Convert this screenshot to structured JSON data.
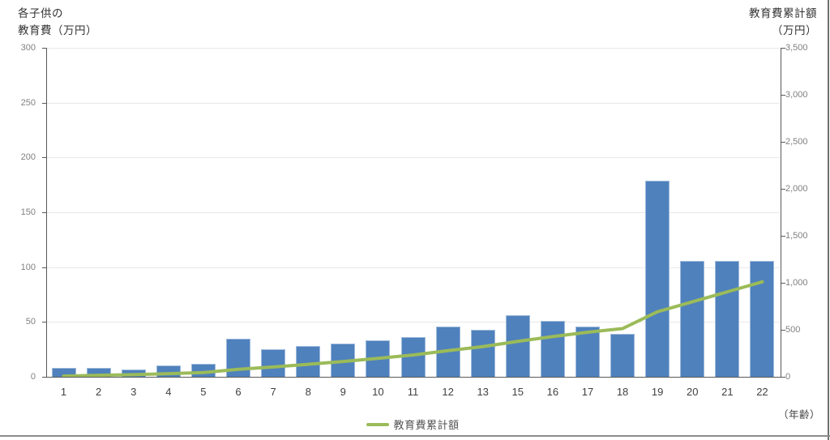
{
  "chart_data": {
    "type": "combo-bar-line",
    "categories": [
      "1",
      "2",
      "3",
      "4",
      "5",
      "6",
      "7",
      "8",
      "9",
      "10",
      "11",
      "12",
      "13",
      "15",
      "16",
      "17",
      "18",
      "19",
      "20",
      "21",
      "22"
    ],
    "series": [
      {
        "name": "各子供の教育費",
        "chart_type": "bar",
        "axis": "left",
        "color": "#4F81BD",
        "values": [
          8,
          8,
          7,
          10,
          12,
          35,
          25,
          28,
          30,
          33,
          36,
          46,
          43,
          56,
          51,
          46,
          39,
          179,
          106,
          106,
          106
        ]
      },
      {
        "name": "教育費累計額",
        "chart_type": "line",
        "axis": "right",
        "color": "#9BBB59",
        "values": [
          8,
          16,
          23,
          33,
          45,
          80,
          105,
          133,
          163,
          196,
          232,
          278,
          321,
          377,
          428,
          474,
          513,
          692,
          798,
          904,
          1010
        ]
      }
    ],
    "left_axis": {
      "title_lines": [
        "各子供の",
        "教育費（万円）"
      ],
      "min": 0,
      "max": 300,
      "step": 50,
      "tick_labels": [
        "0",
        "50",
        "100",
        "150",
        "200",
        "250",
        "300"
      ]
    },
    "right_axis": {
      "title_lines": [
        "教育費累計額",
        "（万円）"
      ],
      "min": 0,
      "max": 3500,
      "step": 500,
      "tick_labels": [
        "0",
        "500",
        "1,000",
        "1,500",
        "2,000",
        "2,500",
        "3,000",
        "3,500"
      ]
    },
    "x_axis": {
      "unit_label": "（年齢）"
    },
    "legend": [
      {
        "label": "教育費累計額",
        "color": "#9BBB59"
      }
    ],
    "grid": true,
    "legend_position": "bottom-center"
  },
  "colors": {
    "bar": "#4F81BD",
    "line": "#9BBB59",
    "gridline": "#E8E8E8",
    "axis_line": "#595959",
    "tick_label": "#808080",
    "x_label": "#404040",
    "page_border": "#7F7F7F"
  }
}
